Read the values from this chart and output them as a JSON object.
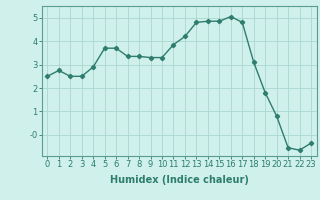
{
  "xlabel": "Humidex (Indice chaleur)",
  "x_values": [
    0,
    1,
    2,
    3,
    4,
    5,
    6,
    7,
    8,
    9,
    10,
    11,
    12,
    13,
    14,
    15,
    16,
    17,
    18,
    19,
    20,
    21,
    22,
    23
  ],
  "y_values": [
    2.5,
    2.75,
    2.5,
    2.5,
    2.9,
    3.7,
    3.7,
    3.35,
    3.35,
    3.3,
    3.3,
    3.85,
    4.2,
    4.8,
    4.85,
    4.85,
    5.05,
    4.8,
    3.1,
    1.8,
    0.8,
    -0.55,
    -0.65,
    -0.35
  ],
  "line_color": "#2e7d6e",
  "marker": "D",
  "marker_size": 2.2,
  "line_width": 1.0,
  "bg_color": "#cff0eb",
  "grid_color": "#aad8d0",
  "ylim": [
    -0.9,
    5.5
  ],
  "xlim": [
    -0.5,
    23.5
  ],
  "yticks": [
    0,
    1,
    2,
    3,
    4,
    5
  ],
  "ytick_labels": [
    "-0",
    "1",
    "2",
    "3",
    "4",
    "5"
  ],
  "xticks": [
    0,
    1,
    2,
    3,
    4,
    5,
    6,
    7,
    8,
    9,
    10,
    11,
    12,
    13,
    14,
    15,
    16,
    17,
    18,
    19,
    20,
    21,
    22,
    23
  ],
  "tick_color": "#2e7d6e",
  "axis_color": "#5a9e90",
  "xlabel_fontsize": 7,
  "tick_fontsize": 6
}
